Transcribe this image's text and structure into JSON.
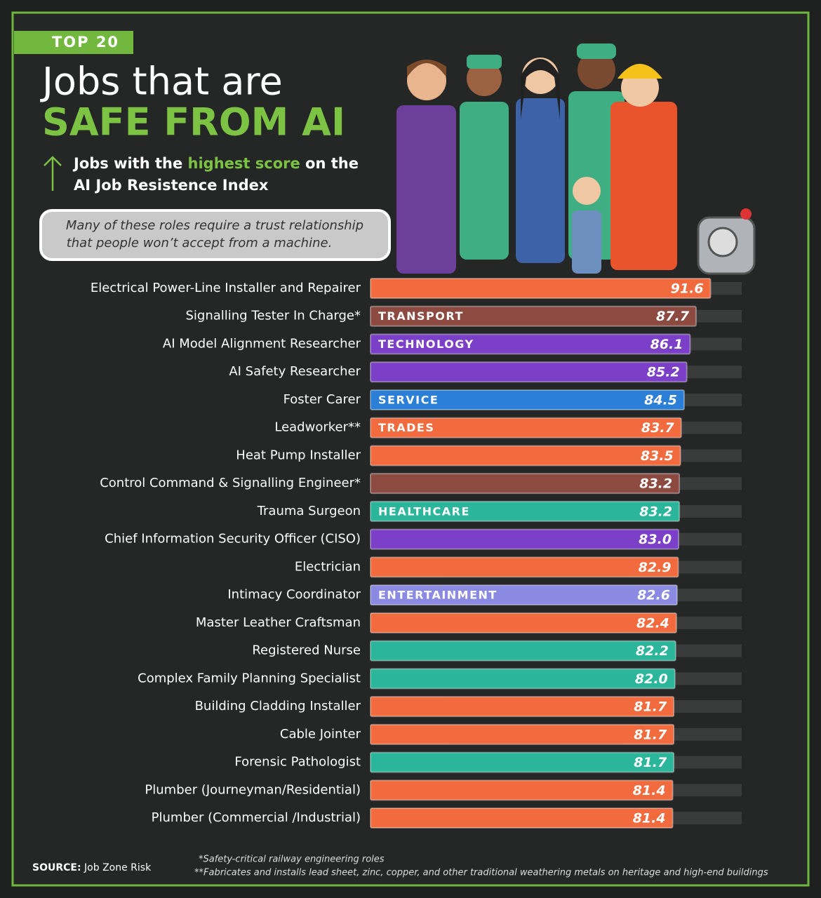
{
  "badge": "TOP 20",
  "title_line1": "Jobs that are",
  "title_line2": "SAFE FROM AI",
  "subtitle": [
    "Jobs with the",
    "highest score",
    "on the",
    "AI Job Resistence Index"
  ],
  "note": [
    "Many of these roles require a trust relationship",
    "that people won’t accept from a machine."
  ],
  "source_label": "SOURCE:",
  "source": "Job Zone Risk",
  "footnotes": [
    "*Safety-critical railway engineering roles",
    "**Fabricates and installs lead sheet, zinc, copper, and other traditional weathering metals on heritage and high-end buildings"
  ],
  "chart_data": {
    "type": "bar",
    "orientation": "horizontal",
    "categories": [
      "Electrical Power-Line Installer and Repairer",
      "Signalling Tester In Charge*",
      "AI Model Alignment Researcher",
      "AI Safety Researcher",
      "Foster Carer",
      "Leadworker**",
      "Heat Pump Installer",
      "Control Command & Signalling Engineer*",
      "Trauma Surgeon",
      "Chief Information Security Officer (CISO)",
      "Electrician",
      "Intimacy Coordinator",
      "Master Leather Craftsman",
      "Registered Nurse",
      "Complex Family Planning Specialist",
      "Building Cladding Installer",
      "Cable Jointer",
      "Forensic Pathologist",
      "Plumber (Journeyman/Residential)",
      "Plumber (Commercial /Industrial)"
    ],
    "values": [
      91.6,
      87.7,
      86.1,
      85.2,
      84.5,
      83.7,
      83.5,
      83.2,
      83.2,
      83.0,
      82.9,
      82.6,
      82.4,
      82.2,
      82.0,
      81.7,
      81.7,
      81.7,
      81.4,
      81.4
    ],
    "value_labels": [
      "91.6",
      "87.7",
      "86.1",
      "85.2",
      "84.5",
      "83.7",
      "83.5",
      "83.2",
      "83.2",
      "83.0",
      "82.9",
      "82.6",
      "82.4",
      "82.2",
      "82.0",
      "81.7",
      "81.7",
      "81.7",
      "81.4",
      "81.4"
    ],
    "tags": [
      null,
      "TRANSPORT",
      "TECHNOLOGY",
      null,
      "SERVICE",
      "TRADES",
      null,
      null,
      "HEALTHCARE",
      null,
      null,
      "ENTERTAINMENT",
      null,
      null,
      null,
      null,
      null,
      null,
      null,
      null
    ],
    "colors": [
      "#f26b3f",
      "#8c4a40",
      "#7b3fc8",
      "#7b3fc8",
      "#2b7fd6",
      "#f26b3f",
      "#f26b3f",
      "#8c4a40",
      "#2bb59b",
      "#7b3fc8",
      "#f26b3f",
      "#8a8ae2",
      "#f26b3f",
      "#2bb59b",
      "#2bb59b",
      "#f26b3f",
      "#f26b3f",
      "#2bb59b",
      "#f26b3f",
      "#f26b3f"
    ],
    "xlim": [
      0,
      100
    ]
  }
}
